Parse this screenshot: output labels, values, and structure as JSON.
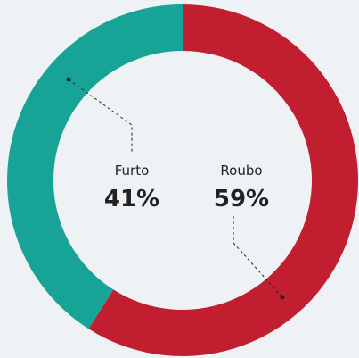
{
  "chart_data": {
    "type": "donut",
    "categories": [
      "Roubo",
      "Furto"
    ],
    "values": [
      59,
      41
    ],
    "value_labels": [
      "59%",
      "41%"
    ],
    "colors": [
      "#c11f2f",
      "#18a397"
    ]
  }
}
